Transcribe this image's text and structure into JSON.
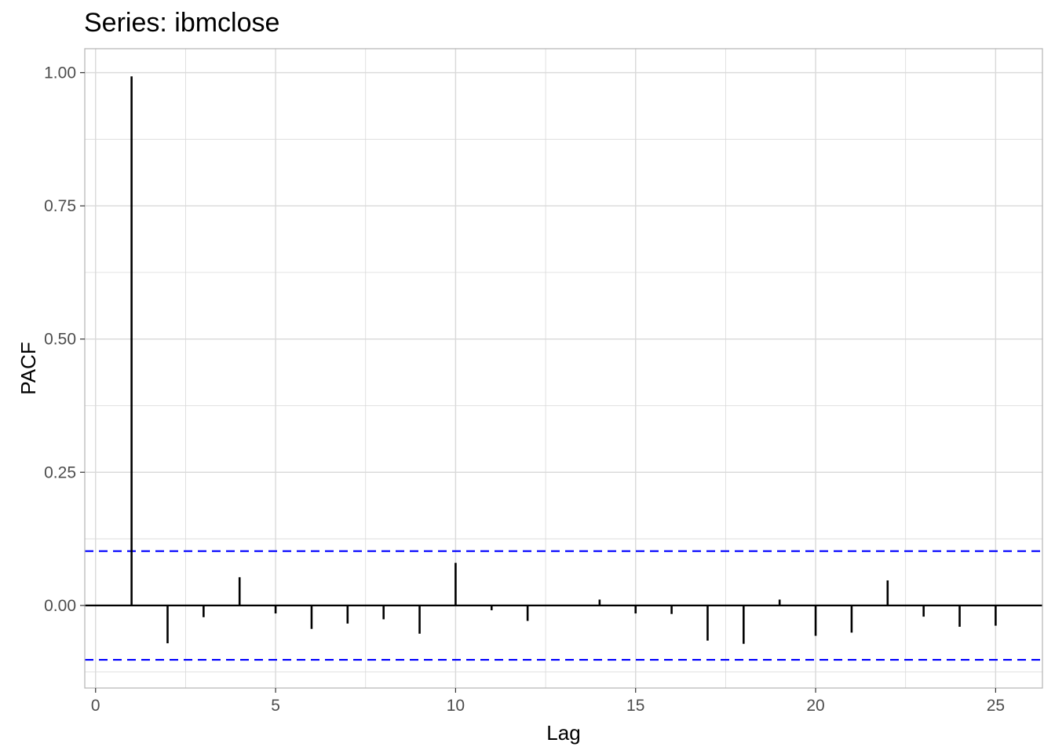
{
  "chart_data": {
    "type": "bar",
    "title": "Series: ibmclose",
    "xlabel": "Lag",
    "ylabel": "PACF",
    "xlim": [
      -0.3,
      26.3
    ],
    "ylim": [
      -0.155,
      1.045
    ],
    "x_ticks": [
      0,
      5,
      10,
      15,
      20,
      25
    ],
    "y_ticks": [
      0.0,
      0.25,
      0.5,
      0.75,
      1.0
    ],
    "y_tick_labels": [
      "0.00",
      "0.25",
      "0.50",
      "0.75",
      "1.00"
    ],
    "grid": true,
    "lags": [
      1,
      2,
      3,
      4,
      5,
      6,
      7,
      8,
      9,
      10,
      11,
      12,
      13,
      14,
      15,
      16,
      17,
      18,
      19,
      20,
      21,
      22,
      23,
      24,
      25
    ],
    "values": [
      0.993,
      -0.071,
      -0.022,
      0.053,
      -0.015,
      -0.044,
      -0.034,
      -0.026,
      -0.053,
      0.08,
      -0.009,
      -0.029,
      0.001,
      0.011,
      -0.015,
      -0.016,
      -0.066,
      -0.072,
      0.011,
      -0.057,
      -0.051,
      0.047,
      -0.021,
      -0.04,
      -0.038
    ],
    "confidence_bound": 0.102,
    "colors": {
      "bars": "#000000",
      "confidence": "#0000ff",
      "grid": "#d9d9d9",
      "panel_border": "#b3b3b3"
    }
  }
}
